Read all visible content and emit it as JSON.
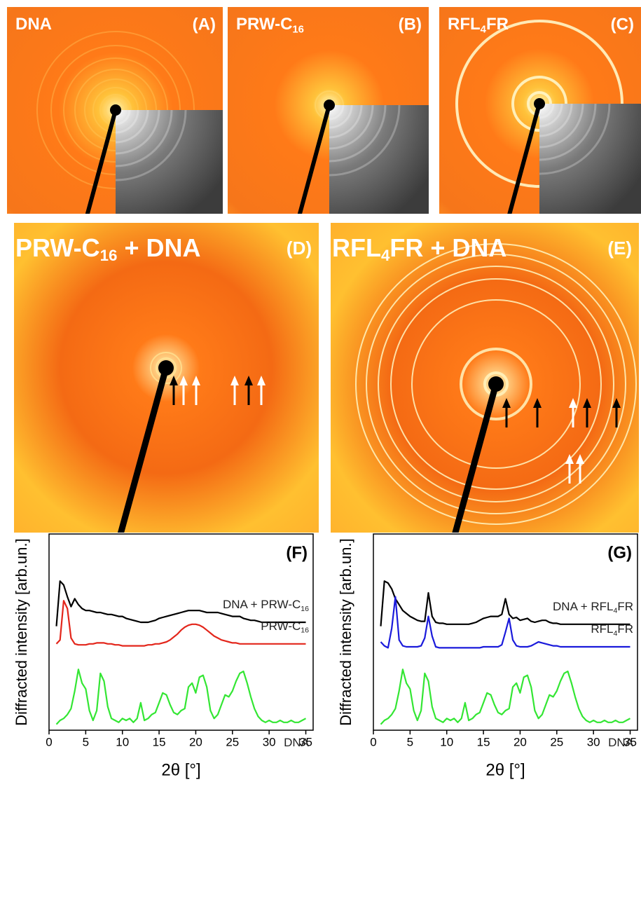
{
  "panels": [
    {
      "label": "(A)",
      "title": [
        "DNA"
      ]
    },
    {
      "label": "(B)",
      "title": [
        "PRW-C",
        "16"
      ]
    },
    {
      "label": "(C)",
      "title": [
        "RFL",
        "4",
        "FR"
      ]
    },
    {
      "label": "(D)",
      "title": [
        "PRW-C",
        "16",
        " + DNA"
      ]
    },
    {
      "label": "(E)",
      "title": [
        "RFL",
        "4",
        "FR + DNA"
      ]
    }
  ],
  "chart_data": [
    {
      "type": "line",
      "panel_label": "(F)",
      "y_label": "Diffracted intensity [arb.un.]",
      "x_label": "2θ [°]",
      "xlim": [
        0,
        36
      ],
      "ylim": [
        0,
        100
      ],
      "xticks": [
        0,
        5,
        10,
        15,
        20,
        25,
        30,
        35
      ],
      "x": [
        1,
        1.5,
        2,
        2.5,
        3,
        3.5,
        4,
        4.5,
        5,
        5.5,
        6,
        6.5,
        7,
        7.5,
        8,
        8.5,
        9,
        9.5,
        10,
        10.5,
        11,
        11.5,
        12,
        12.5,
        13,
        13.5,
        14,
        14.5,
        15,
        15.5,
        16,
        16.5,
        17,
        17.5,
        18,
        18.5,
        19,
        19.5,
        20,
        20.5,
        21,
        21.5,
        22,
        22.5,
        23,
        23.5,
        24,
        24.5,
        25,
        25.5,
        26,
        26.5,
        27,
        27.5,
        28,
        28.5,
        29,
        29.5,
        30,
        30.5,
        31,
        31.5,
        32,
        32.5,
        33,
        33.5,
        34,
        34.5,
        35
      ],
      "series": [
        {
          "color": "#000000",
          "label": [
            "DNA + PRW-C",
            "16"
          ],
          "values": [
            53,
            76,
            74,
            68,
            63,
            67,
            64,
            62,
            61,
            61,
            60.5,
            60,
            60,
            59.5,
            59,
            59,
            58.5,
            58,
            58,
            57,
            56.5,
            56,
            55.5,
            55,
            55,
            55,
            55.5,
            56,
            57,
            57.5,
            58,
            58.5,
            59,
            59.5,
            60,
            60.5,
            61,
            61,
            61,
            61,
            60.5,
            60,
            60,
            60,
            60,
            59.5,
            59,
            58.5,
            58,
            58,
            58,
            57,
            56.5,
            56,
            56,
            55.5,
            55,
            55,
            55,
            55,
            55,
            55,
            55,
            55,
            55,
            55,
            55,
            55,
            55
          ]
        },
        {
          "color": "#e3261b",
          "label": [
            "PRW-C",
            "16"
          ],
          "values": [
            44,
            46,
            66,
            62,
            47,
            44,
            43.5,
            43.5,
            43.5,
            44,
            44,
            44.5,
            44.5,
            44.5,
            44,
            44,
            43.5,
            43.5,
            43,
            43,
            43,
            43,
            43,
            43,
            43,
            43.5,
            43.5,
            44,
            44,
            44.5,
            45,
            46,
            47.5,
            49,
            51,
            52.5,
            53.5,
            54,
            54,
            53.5,
            52.5,
            51,
            49.5,
            48,
            47,
            46,
            45.5,
            45,
            44.5,
            44.5,
            44,
            44,
            44,
            44,
            44,
            44,
            44,
            44,
            44,
            44,
            44,
            44,
            44,
            44,
            44,
            44,
            44,
            44,
            44
          ]
        },
        {
          "color": "#33e633",
          "label": [
            "DNA"
          ],
          "values": [
            3,
            5,
            6,
            8,
            11,
            20,
            31,
            24,
            21,
            10,
            5,
            10,
            29,
            25,
            12,
            6,
            5,
            4,
            6,
            5,
            6,
            4,
            6,
            14,
            5,
            6,
            8,
            9,
            14,
            19,
            18,
            13,
            9,
            8,
            10,
            11,
            22,
            24,
            19,
            27,
            28,
            22,
            10,
            6,
            8,
            13,
            18,
            17,
            20,
            25,
            29,
            30,
            24,
            17,
            11,
            7,
            5,
            4,
            5,
            4,
            4,
            5,
            4,
            4,
            5,
            4,
            4,
            5,
            6
          ]
        }
      ]
    },
    {
      "type": "line",
      "panel_label": "(G)",
      "y_label": "Diffracted intensity [arb.un.]",
      "x_label": "2θ [°]",
      "xlim": [
        0,
        36
      ],
      "ylim": [
        0,
        100
      ],
      "xticks": [
        0,
        5,
        10,
        15,
        20,
        25,
        30,
        35
      ],
      "x": [
        1,
        1.5,
        2,
        2.5,
        3,
        3.5,
        4,
        4.5,
        5,
        5.5,
        6,
        6.5,
        7,
        7.5,
        8,
        8.5,
        9,
        9.5,
        10,
        10.5,
        11,
        11.5,
        12,
        12.5,
        13,
        13.5,
        14,
        14.5,
        15,
        15.5,
        16,
        16.5,
        17,
        17.5,
        18,
        18.5,
        19,
        19.5,
        20,
        20.5,
        21,
        21.5,
        22,
        22.5,
        23,
        23.5,
        24,
        24.5,
        25,
        25.5,
        26,
        26.5,
        27,
        27.5,
        28,
        28.5,
        29,
        29.5,
        30,
        30.5,
        31,
        31.5,
        32,
        32.5,
        33,
        33.5,
        34,
        34.5,
        35
      ],
      "series": [
        {
          "color": "#000000",
          "label": [
            "DNA + RFL",
            "4",
            "FR"
          ],
          "values": [
            53,
            76,
            75,
            72,
            67,
            64,
            61,
            59.5,
            58,
            57,
            56,
            55.5,
            55.5,
            70,
            58,
            55,
            54.5,
            54.5,
            54,
            54,
            54,
            54,
            54,
            54,
            54,
            54.5,
            55,
            56,
            57,
            57.5,
            58,
            58,
            58,
            59,
            67,
            59,
            57,
            57.5,
            56,
            56.5,
            57,
            55.5,
            55,
            55.5,
            56,
            56,
            55,
            54.5,
            54.5,
            54,
            54,
            54,
            54,
            54,
            54,
            54,
            54,
            54,
            54,
            54,
            54,
            54,
            54,
            54,
            54,
            54,
            54,
            54,
            54
          ]
        },
        {
          "color": "#1a1adb",
          "label": [
            "RFL",
            "4",
            "FR"
          ],
          "values": [
            45,
            43,
            42,
            52,
            68,
            46,
            43,
            42.5,
            42.5,
            42.5,
            42.5,
            43,
            47,
            58,
            48,
            42.5,
            42,
            42,
            42,
            42,
            42,
            42,
            42,
            42,
            42,
            42,
            42,
            42,
            42.5,
            42.5,
            42.5,
            42.5,
            42.5,
            43.5,
            50,
            57,
            46,
            43,
            42.5,
            42.5,
            42.5,
            43,
            44,
            45,
            44.5,
            44,
            43.5,
            43,
            43,
            42.5,
            42.5,
            42.5,
            42.5,
            42.5,
            42.5,
            42.5,
            42.5,
            42.5,
            42.5,
            42.5,
            42.5,
            42.5,
            42.5,
            42.5,
            42.5,
            42.5,
            42.5,
            42.5,
            42.5
          ]
        },
        {
          "color": "#33e633",
          "label": [
            "DNA"
          ],
          "values": [
            3,
            5,
            6,
            8,
            11,
            20,
            31,
            24,
            21,
            10,
            5,
            10,
            29,
            25,
            12,
            6,
            5,
            4,
            6,
            5,
            6,
            4,
            6,
            14,
            5,
            6,
            8,
            9,
            14,
            19,
            18,
            13,
            9,
            8,
            10,
            11,
            22,
            24,
            19,
            27,
            28,
            22,
            10,
            6,
            8,
            13,
            18,
            17,
            20,
            25,
            29,
            30,
            24,
            17,
            11,
            7,
            5,
            4,
            5,
            4,
            4,
            5,
            4,
            4,
            5,
            4,
            4,
            5,
            6
          ]
        }
      ]
    }
  ]
}
